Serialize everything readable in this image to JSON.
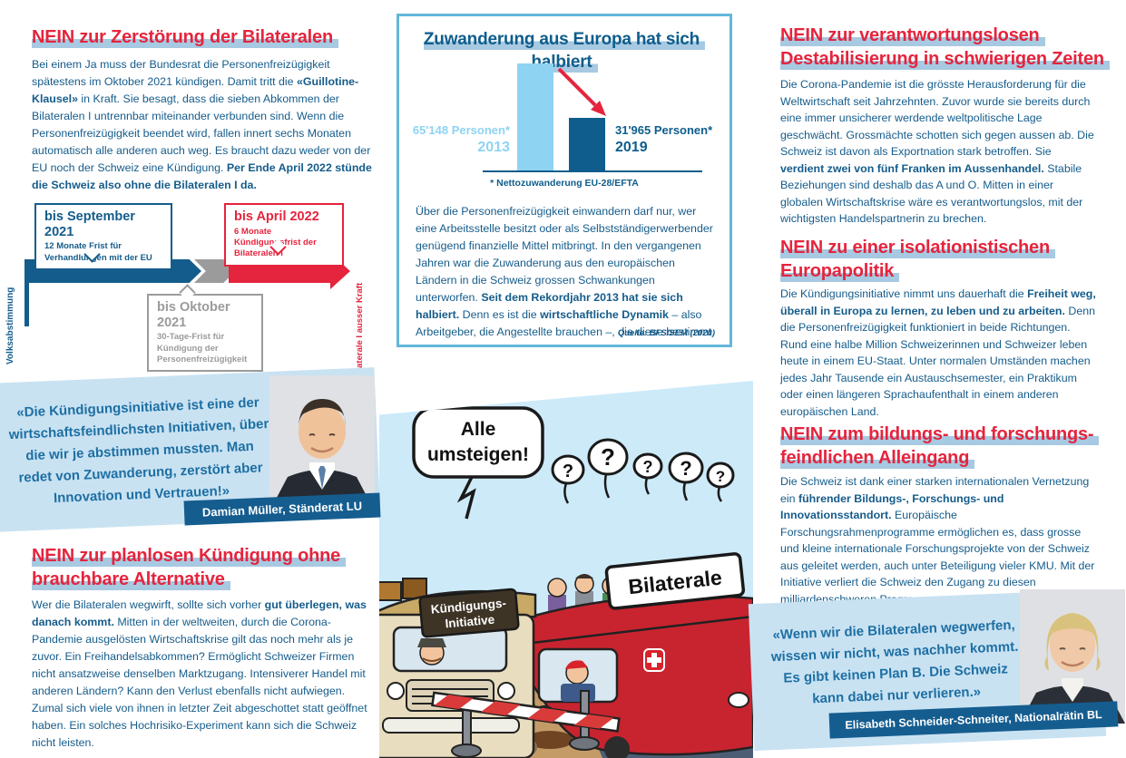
{
  "colors": {
    "red": "#e5243d",
    "dark_blue": "#155c8b",
    "highlight_blue": "#a7c9e1",
    "quote_card_bg": "#c9e2f2",
    "banner_blue": "#155d8f",
    "chart_light_blue": "#8fd3f3",
    "chart_dark_blue": "#0e5d8c",
    "infobox_border": "#63b7d9",
    "timeline_gray": "#9b9b9b"
  },
  "left": {
    "section1": {
      "title": "NEIN zur Zerstörung der Bilateralen",
      "paragraph": [
        {
          "t": "Bei einem Ja muss der Bundesrat die Personenfreizügigkeit spätestens im Oktober 2021 kündigen. Damit tritt die "
        },
        {
          "t": "«Guillotine-Klausel»",
          "b": true
        },
        {
          "t": " in Kraft. Sie besagt, dass die sieben Abkommen der Bilateralen I untrennbar miteinander verbunden sind. Wenn die Personenfreizügigkeit beendet wird, fallen innert sechs Monaten automatisch alle anderen auch weg. Es braucht dazu weder von der EU noch der Schweiz eine Kündigung. "
        },
        {
          "t": "Per Ende April 2022 stünde die Schweiz also ohne die Bilateralen I da.",
          "b": true
        }
      ]
    },
    "timeline": {
      "axis_start_label": "Volksabstimmung",
      "axis_end_label": "Bilaterale I ausser Kraft",
      "milestone_blue": {
        "title": "bis September 2021",
        "desc": "12 Monate Frist für Verhandlungen mit der EU"
      },
      "milestone_red": {
        "title": "bis April 2022",
        "desc": "6 Monate Kündigungsfrist der Bilateralen I"
      },
      "milestone_gray": {
        "title": "bis Oktober 2021",
        "desc": "30-Tage-Frist für Kündigung der Personenfreizügigkeit"
      }
    },
    "section2": {
      "title_lines": [
        "NEIN zur planlosen Kündigung ohne",
        "brauchbare Alternative"
      ],
      "paragraph": [
        {
          "t": "Wer die Bilateralen wegwirft, sollte sich vorher "
        },
        {
          "t": "gut überlegen, was danach kommt.",
          "b": true
        },
        {
          "t": " Mitten in der weltweiten, durch die Corona-Pandemie ausgelösten Wirtschaftskrise gilt das noch mehr als je zuvor. Ein Freihandelsabkommen? Ermöglicht Schweizer Firmen nicht ansatzweise denselben Marktzugang. Intensiverer Handel mit anderen Ländern? Kann den Verlust ebenfalls nicht aufwiegen. Zumal sich viele von ihnen in letzter Zeit abgeschottet statt geöffnet haben. Ein solches Hochrisiko-Experiment kann sich die Schweiz nicht leisten."
        }
      ]
    }
  },
  "infobox": {
    "title": "Zuwanderung aus Europa hat sich halbiert",
    "paragraph": [
      {
        "t": "Über die Personenfreizügigkeit einwandern darf nur, wer eine Arbeitsstelle besitzt oder als Selbstständigerwerbender genügend finanzielle Mittel mitbringt. In den vergangenen Jahren war die Zuwanderung aus den europäischen Ländern in die Schweiz grossen Schwankungen unterworfen. "
      },
      {
        "t": "Seit dem Rekordjahr 2013 hat sie sich halbiert.",
        "b": true
      },
      {
        "t": " Denn es ist die "
      },
      {
        "t": "wirtschaftliche Dynamik",
        "b": true
      },
      {
        "t": " – also Arbeitgeber, die Angestellte brauchen –, die diese bestimmt."
      }
    ],
    "source": "Quelle: BFS/SEM (2020)"
  },
  "chart_data": {
    "type": "bar",
    "title": "Zuwanderung aus Europa hat sich halbiert",
    "categories": [
      "2013",
      "2019"
    ],
    "values": [
      65148,
      31965
    ],
    "bar_labels": [
      "65'148 Personen*",
      "31'965 Personen*"
    ],
    "footnote": "* Nettozuwanderung EU-28/EFTA",
    "source": "Quelle: BFS/SEM (2020)",
    "legend_position": "none",
    "grid": false,
    "colors": {
      "2013": "#8fd3f3",
      "2019": "#0e5d8c"
    },
    "annotation": "red arrow from 2013 bar down to 2019 bar"
  },
  "cartoon": {
    "speech_lines": [
      "Alle",
      "umsteigen!"
    ],
    "question_mark": "?",
    "old_bus_sign_lines": [
      "Kündigungs-",
      "Initiative"
    ],
    "new_bus_sign": "Bilaterale"
  },
  "right": {
    "section1": {
      "title_lines": [
        "NEIN zur verantwortungslosen",
        "Destabilisierung in schwierigen Zeiten"
      ],
      "paragraph": [
        {
          "t": "Die Corona-Pandemie ist die grösste Herausforderung für die Weltwirtschaft seit Jahrzehnten. Zuvor wurde sie bereits durch eine immer unsicherer werdende weltpolitische Lage geschwächt. Grossmächte schotten sich gegen aussen ab. Die Schweiz ist davon als Exportnation stark betroffen. Sie "
        },
        {
          "t": "verdient zwei von fünf Franken im Aussenhandel.",
          "b": true
        },
        {
          "t": " Stabile Beziehungen sind deshalb das A und O. Mitten in einer globalen Wirtschaftskrise wäre es verantwortungslos, mit der wichtigsten Handelspartnerin zu brechen."
        }
      ]
    },
    "section2": {
      "title_lines": [
        "NEIN zu einer isolationistischen",
        "Europapolitik"
      ],
      "paragraph": [
        {
          "t": "Die Kündigungsinitiative nimmt uns dauerhaft die "
        },
        {
          "t": "Freiheit weg, überall in Europa zu lernen, zu leben und zu arbeiten.",
          "b": true
        },
        {
          "t": " Denn die Personenfreizügigkeit funktioniert in beide Richtungen. Rund eine halbe Million Schweizerinnen und Schweizer leben heute in einem EU-Staat. Unter normalen Umständen machen jedes Jahr Tausende ein Austauschsemester, ein Praktikum oder einen längeren Sprachaufenthalt in einem anderen europäischen Land."
        }
      ]
    },
    "section3": {
      "title_lines": [
        "NEIN zum bildungs- und forschungs-",
        "feindlichen Alleingang"
      ],
      "paragraph": [
        {
          "t": "Die Schweiz ist dank einer starken internationalen Vernetzung ein "
        },
        {
          "t": "führender Bildungs-, Forschungs- und Innovationsstandort.",
          "b": true
        },
        {
          "t": " Europäische Forschungsrahmenprogramme ermöglichen es, dass grosse und kleine internationale Forschungsprojekte von der Schweiz aus geleitet werden, auch unter Beteiligung vieler KMU. Mit der Initiative verliert die Schweiz den Zugang zu diesen milliardenschweren Programmen."
        }
      ]
    }
  },
  "quotes": [
    {
      "text": "«Die Kündigungsinitiative ist eine der wirtschaftsfeindlichsten Initiativen, über die wir je abstimmen mussten. Man redet von Zuwanderung, zerstört aber Innovation und Vertrauen!»",
      "attribution": "Damian Müller, Ständerat LU"
    },
    {
      "text": "«Wenn wir die Bilateralen wegwerfen, wissen wir nicht, was nachher kommt. Es gibt keinen Plan B. Die Schweiz kann dabei nur verlieren.»",
      "attribution": "Elisabeth Schneider-Schneiter, Nationalrätin BL"
    }
  ]
}
